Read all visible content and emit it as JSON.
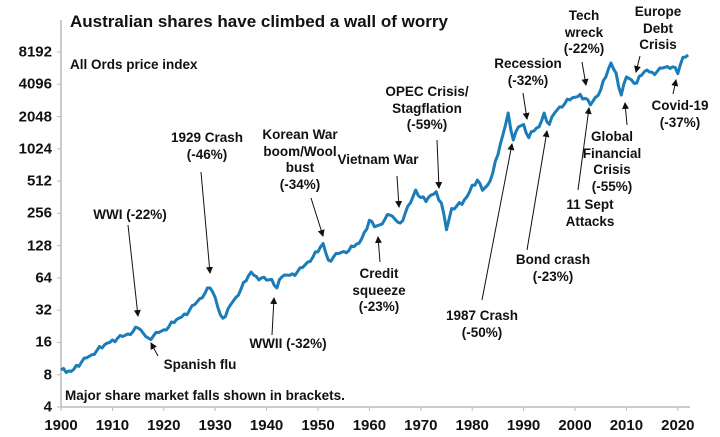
{
  "chart_data": {
    "type": "line",
    "title": "Australian shares have climbed a wall of worry",
    "subtitle": "All Ords price index",
    "note": "Major share market falls shown in brackets.",
    "xlabel": "",
    "ylabel": "",
    "y_scale": "log2",
    "ylim": [
      4,
      8192
    ],
    "xlim": [
      1900,
      2022
    ],
    "grid": false,
    "line_color": "#1b7cb8",
    "y_ticks": [
      "4",
      "8",
      "16",
      "32",
      "64",
      "128",
      "256",
      "512",
      "1024",
      "2048",
      "4096",
      "8192"
    ],
    "x_ticks": [
      "1900",
      "1910",
      "1920",
      "1930",
      "1940",
      "1950",
      "1960",
      "1970",
      "1980",
      "1990",
      "2000",
      "2010",
      "2020"
    ],
    "series": [
      {
        "x": [
          1900,
          1901,
          1902,
          1903,
          1904,
          1905,
          1906,
          1907,
          1908,
          1909,
          1910,
          1911,
          1912,
          1913,
          1914,
          1915,
          1916,
          1917,
          1918,
          1919,
          1920,
          1921,
          1922,
          1923,
          1924,
          1925,
          1926,
          1927,
          1928,
          1929,
          1930,
          1931,
          1932,
          1933,
          1934,
          1935,
          1936,
          1937,
          1938,
          1939,
          1940,
          1941,
          1942,
          1943,
          1944,
          1945,
          1946,
          1947,
          1948,
          1949,
          1950,
          1951,
          1952,
          1953,
          1954,
          1955,
          1956,
          1957,
          1958,
          1959,
          1960,
          1961,
          1962,
          1963,
          1964,
          1965,
          1966,
          1967,
          1968,
          1969,
          1970,
          1971,
          1972,
          1973,
          1974,
          1975,
          1976,
          1977,
          1978,
          1979,
          1980,
          1981,
          1982,
          1983,
          1984,
          1985,
          1986,
          1987,
          1988,
          1989,
          1990,
          1991,
          1992,
          1993,
          1994,
          1995,
          1996,
          1997,
          1998,
          1999,
          2000,
          2001,
          2002,
          2003,
          2004,
          2005,
          2006,
          2007,
          2008,
          2009,
          2010,
          2011,
          2012,
          2013,
          2014,
          2015,
          2016,
          2017,
          2018,
          2019,
          2020,
          2021,
          2022
        ],
        "y": [
          8.9,
          8.4,
          8.6,
          9.8,
          10.5,
          11.5,
          12.3,
          13.5,
          14.2,
          15.8,
          16.9,
          17.5,
          18.2,
          19.2,
          20.2,
          21.8,
          19.5,
          17.6,
          18.5,
          19.8,
          21,
          22.5,
          24.5,
          27,
          29.5,
          32,
          36,
          41,
          46,
          51.6,
          42,
          29,
          28,
          36,
          42,
          50,
          60,
          72.6,
          66,
          64,
          61,
          62,
          51.6,
          65.7,
          68,
          70,
          73,
          80,
          90,
          100,
          112,
          134,
          94,
          100,
          108,
          113,
          115,
          125,
          135,
          170,
          221,
          192,
          200,
          225,
          247,
          225,
          208,
          260,
          321,
          423,
          360,
          330,
          380,
          408,
          320,
          180,
          284,
          300,
          310,
          367,
          470,
          523,
          420,
          470,
          610,
          900,
          1400,
          2211,
          1236,
          1640,
          1730,
          1300,
          1500,
          1640,
          2211,
          1730,
          2200,
          2520,
          2700,
          2925,
          3100,
          3300,
          3030,
          2630,
          3100,
          3630,
          4800,
          6480,
          5200,
          3250,
          4800,
          4500,
          4200,
          5000,
          5570,
          5300,
          5400,
          5800,
          6000,
          5960,
          5150,
          7300,
          7700
        ]
      }
    ],
    "annotations": [
      {
        "id": "wwi",
        "lines": [
          "WWI (-22%)"
        ]
      },
      {
        "id": "crash1929",
        "lines": [
          "1929 Crash",
          "(-46%)"
        ]
      },
      {
        "id": "korean",
        "lines": [
          "Korean War",
          "boom/Wool",
          "bust",
          "(-34%)"
        ]
      },
      {
        "id": "vietnam",
        "lines": [
          "Vietnam War"
        ]
      },
      {
        "id": "opec",
        "lines": [
          "OPEC Crisis/",
          "Stagflation",
          "(-59%)"
        ]
      },
      {
        "id": "recession",
        "lines": [
          "Recession",
          "(-32%)"
        ]
      },
      {
        "id": "tech",
        "lines": [
          "Tech",
          "wreck",
          "(-22%)"
        ]
      },
      {
        "id": "europe",
        "lines": [
          "Europe",
          "Debt",
          "Crisis"
        ]
      },
      {
        "id": "covid",
        "lines": [
          "Covid-19",
          "(-37%)"
        ]
      },
      {
        "id": "gfc",
        "lines": [
          "Global",
          "Financial",
          "Crisis",
          "(-55%)"
        ]
      },
      {
        "id": "sept11",
        "lines": [
          "11 Sept",
          "Attacks"
        ]
      },
      {
        "id": "bond",
        "lines": [
          "Bond crash",
          "(-23%)"
        ]
      },
      {
        "id": "crash1987",
        "lines": [
          "1987 Crash",
          "(-50%)"
        ]
      },
      {
        "id": "credit",
        "lines": [
          "Credit",
          "squeeze",
          "(-23%)"
        ]
      },
      {
        "id": "spanish",
        "lines": [
          "Spanish flu"
        ]
      },
      {
        "id": "wwii",
        "lines": [
          "WWII (-32%)"
        ]
      }
    ]
  }
}
